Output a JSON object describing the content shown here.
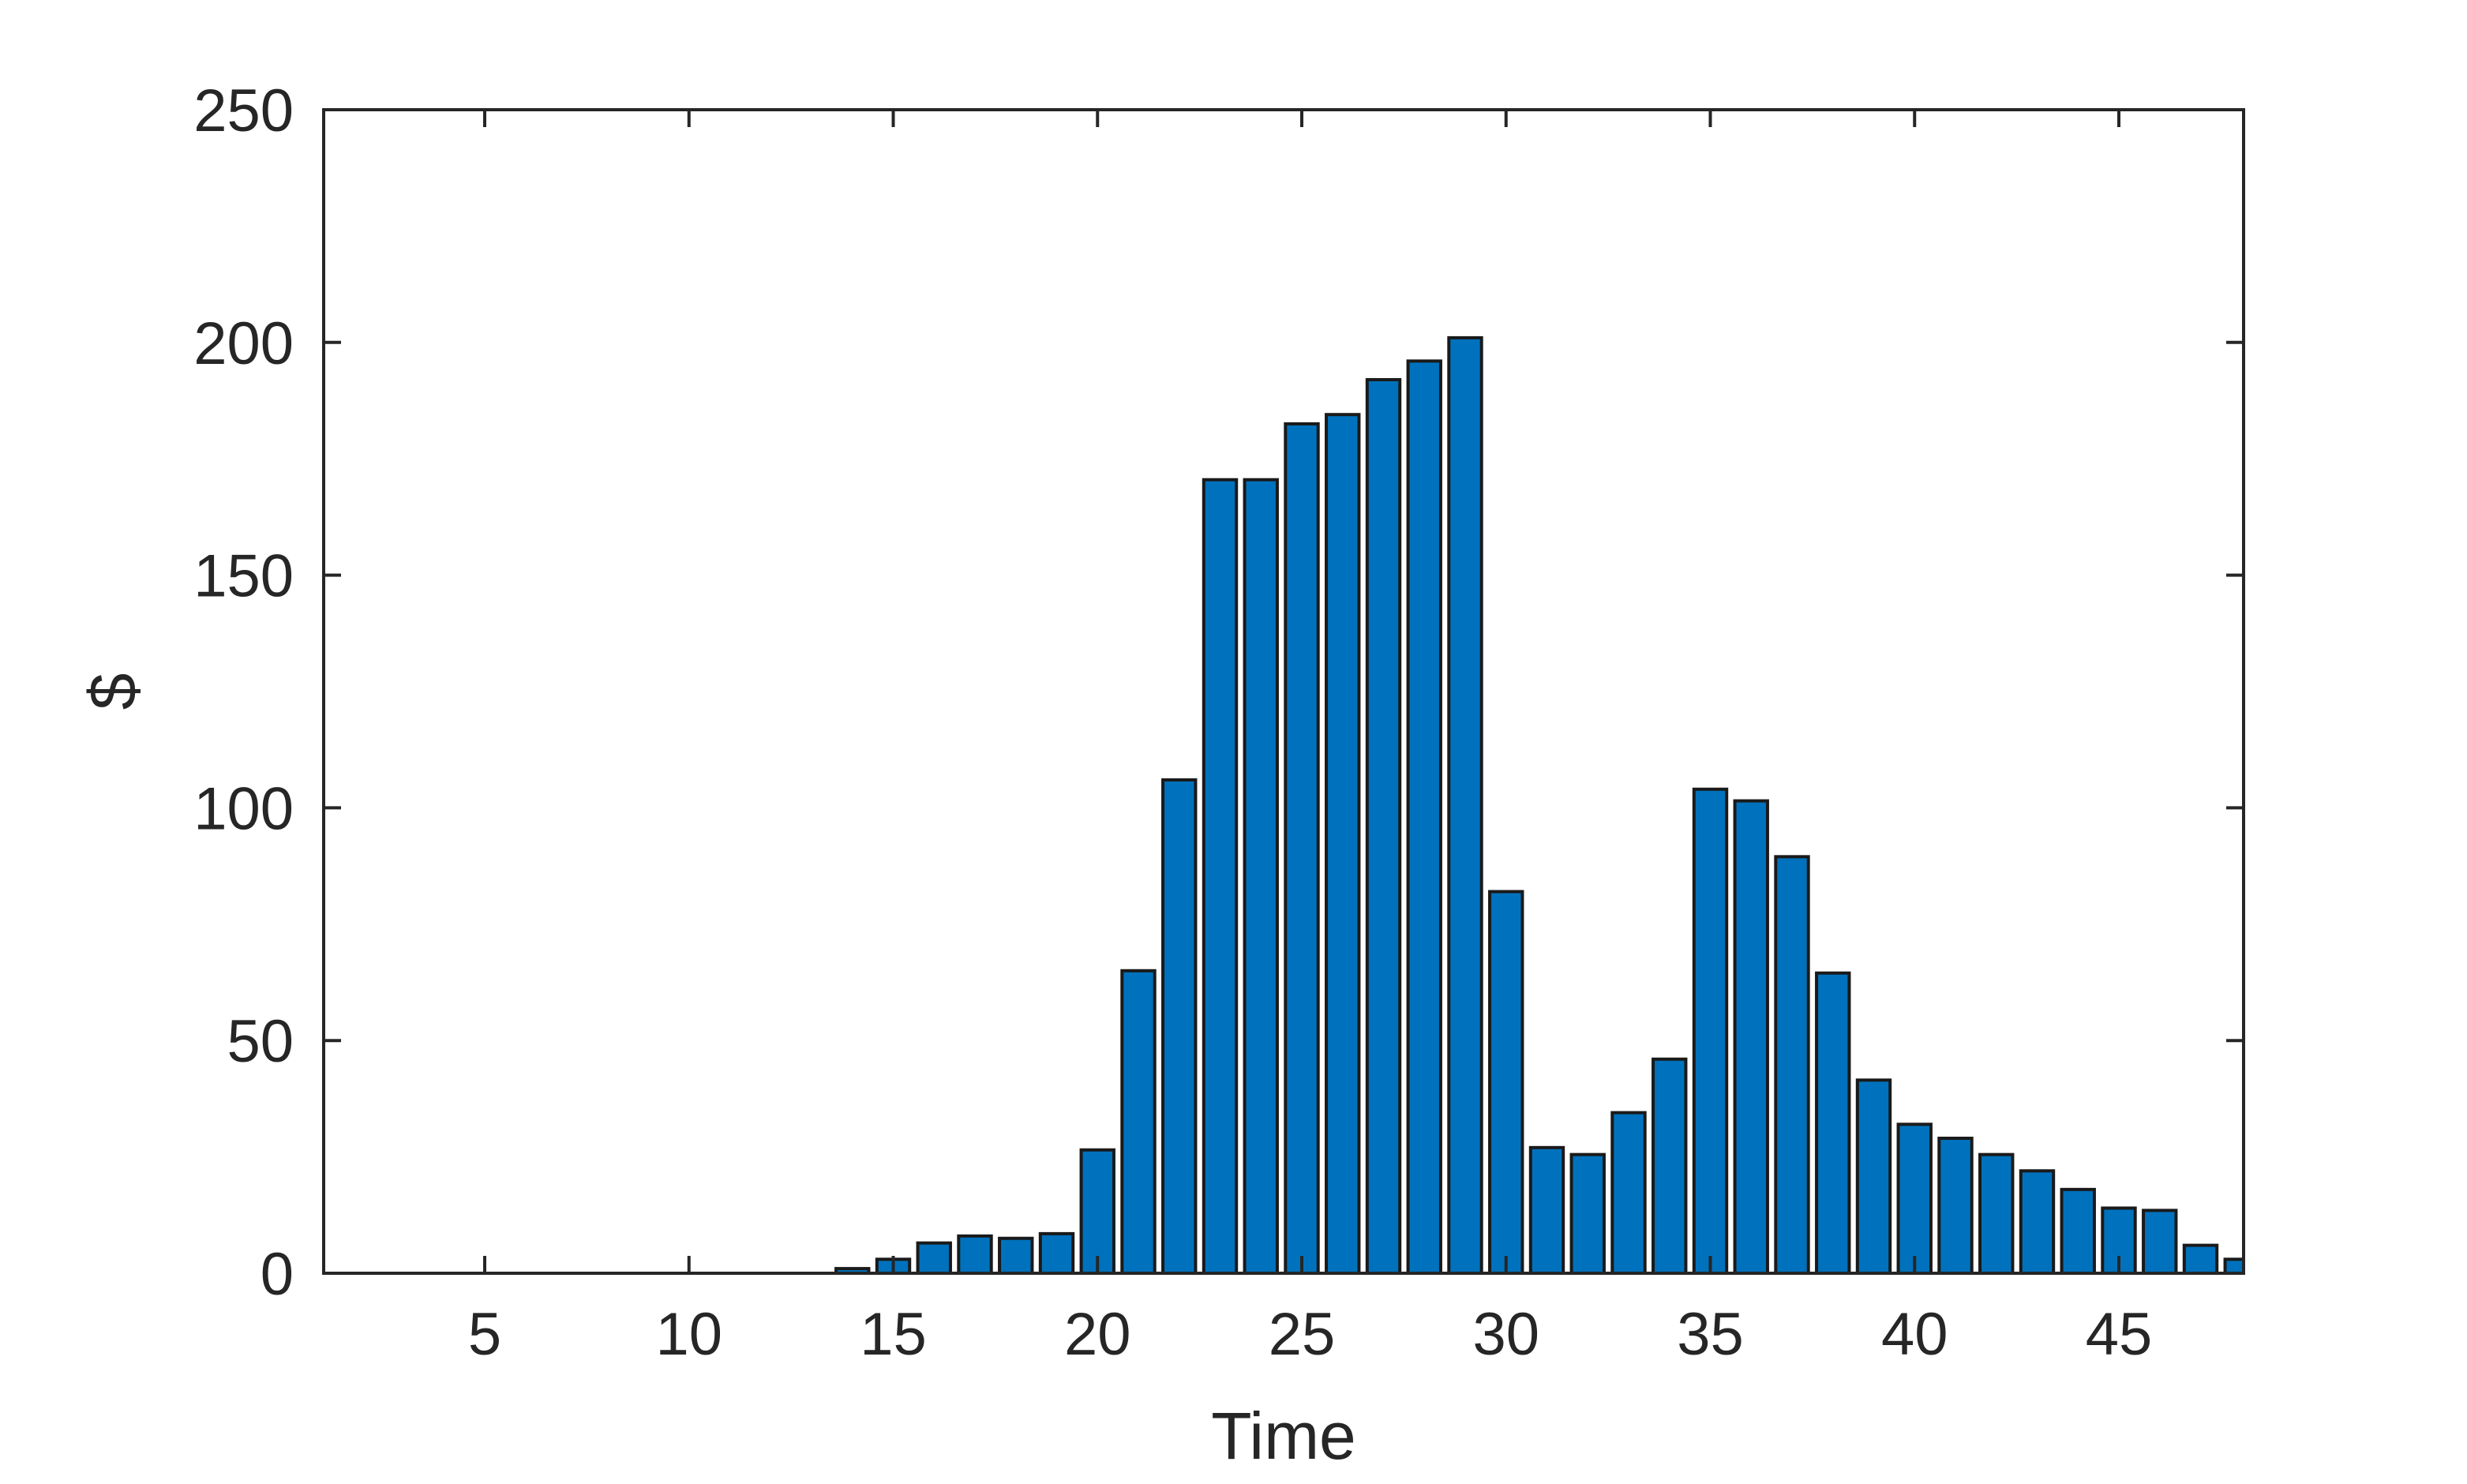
{
  "chart_data": {
    "type": "bar",
    "xlabel": "Time",
    "ylabel": "$",
    "xlim": [
      2,
      49
    ],
    "ylim": [
      0,
      250
    ],
    "xticks": [
      5,
      10,
      15,
      20,
      25,
      30,
      35,
      40,
      45
    ],
    "yticks": [
      0,
      50,
      100,
      150,
      200,
      250
    ],
    "grid": false,
    "bar_color": "#0072BD",
    "edge_color": "#1a1a1a",
    "x": [
      2,
      3,
      4,
      5,
      6,
      7,
      8,
      9,
      10,
      11,
      12,
      13,
      14,
      15,
      16,
      17,
      18,
      19,
      20,
      21,
      22,
      23,
      24,
      25,
      26,
      27,
      28,
      29,
      30,
      31,
      32,
      33,
      34,
      35,
      36,
      37,
      38,
      39,
      40,
      41,
      42,
      43,
      44,
      45,
      46,
      47,
      48
    ],
    "values": [
      0,
      0,
      0,
      0,
      0,
      0,
      0,
      0,
      0,
      0,
      0,
      0,
      1,
      3,
      6.5,
      8,
      7.5,
      8.5,
      26.5,
      65,
      106,
      170.5,
      170.5,
      182.5,
      184.5,
      192,
      196,
      201,
      82,
      27,
      25.5,
      34.5,
      46,
      104,
      101.5,
      89.5,
      64.5,
      41.5,
      32,
      29,
      25.5,
      22,
      18,
      14,
      13.5,
      6,
      3
    ]
  }
}
